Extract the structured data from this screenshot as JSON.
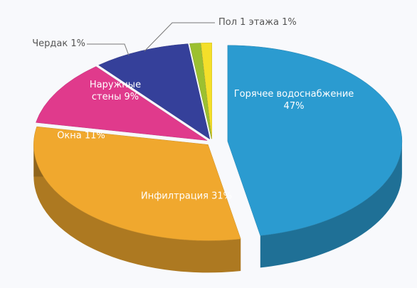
{
  "chart_data": {
    "type": "pie3d",
    "categories": [
      "Горячее водоснабжение",
      "Инфилтрация",
      "Окна",
      "Наружные стены",
      "Чердак",
      "Пол 1 этажа"
    ],
    "values": [
      47,
      31,
      11,
      9,
      1,
      1
    ],
    "value_labels": [
      "47%",
      "31%",
      "11%",
      "9%",
      "1%",
      "1%"
    ],
    "colors": [
      "#2b9bd0",
      "#f0a82e",
      "#e03a8c",
      "#35409a",
      "#9cc030",
      "#f4df2a"
    ]
  }
}
